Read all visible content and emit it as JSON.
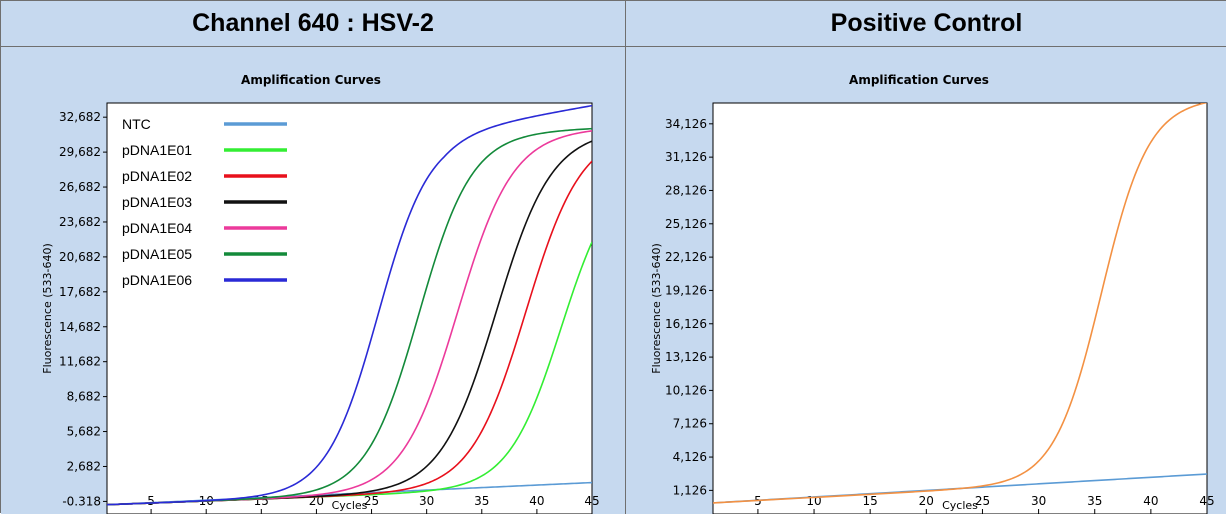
{
  "panels": [
    {
      "header": "Channel 640 : HSV-2",
      "chart_data": {
        "type": "line",
        "title": "Amplification Curves",
        "xlabel": "Cycles",
        "ylabel": "Fluorescence (533-640)",
        "xlim": [
          1,
          45
        ],
        "ylim": [
          -1.4,
          33.9
        ],
        "xticks": [
          5,
          10,
          15,
          20,
          25,
          30,
          35,
          40,
          45
        ],
        "yticks": [
          -0.318,
          2.682,
          5.682,
          8.682,
          11.682,
          14.682,
          17.682,
          20.682,
          23.682,
          26.682,
          29.682,
          32.682
        ],
        "ytick_labels": [
          "-0.318",
          "2,682",
          "5,682",
          "8,682",
          "11,682",
          "14,682",
          "17,682",
          "20,682",
          "23,682",
          "26,682",
          "29,682",
          "32,682"
        ],
        "grid": false,
        "legend_position": "top-left",
        "series": [
          {
            "name": "NTC",
            "color": "#5b9bd5",
            "kind": "linear",
            "params": {
              "base": -0.6,
              "end": 1.3
            }
          },
          {
            "name": "pDNA1E01",
            "color": "#33ee33",
            "kind": "sigmoid",
            "params": {
              "base": -0.6,
              "slope": 0.035,
              "top": 27.5,
              "mid": 42.2,
              "k": 0.42
            }
          },
          {
            "name": "pDNA1E02",
            "color": "#e8101c",
            "kind": "sigmoid",
            "params": {
              "base": -0.6,
              "slope": 0.035,
              "top": 30.5,
              "mid": 39.0,
              "k": 0.4
            }
          },
          {
            "name": "pDNA1E03",
            "color": "#111111",
            "kind": "sigmoid",
            "params": {
              "base": -0.6,
              "slope": 0.035,
              "top": 30.6,
              "mid": 36.3,
              "k": 0.4
            }
          },
          {
            "name": "pDNA1E04",
            "color": "#ec3a9b",
            "kind": "sigmoid",
            "params": {
              "base": -0.6,
              "slope": 0.035,
              "top": 30.8,
              "mid": 32.8,
              "k": 0.4
            }
          },
          {
            "name": "pDNA1E05",
            "color": "#138a3a",
            "kind": "sigmoid",
            "params": {
              "base": -0.6,
              "slope": 0.035,
              "top": 30.8,
              "mid": 29.3,
              "k": 0.42
            }
          },
          {
            "name": "pDNA1E06",
            "color": "#2a2ad6",
            "kind": "sigmoid",
            "params": {
              "base": -0.6,
              "slope": 0.035,
              "top": 31.0,
              "mid": 25.6,
              "k": 0.43,
              "drift": 0.13
            }
          }
        ]
      }
    },
    {
      "header": "Positive Control",
      "chart_data": {
        "type": "line",
        "title": "Amplification Curves",
        "xlabel": "Cycles",
        "ylabel": "Fluorescence (533-640)",
        "xlim": [
          1,
          45
        ],
        "ylim": [
          -1.0,
          36.0
        ],
        "xticks": [
          5,
          10,
          15,
          20,
          25,
          30,
          35,
          40,
          45
        ],
        "yticks": [
          1.126,
          4.126,
          7.126,
          10.126,
          13.126,
          16.126,
          19.126,
          22.126,
          25.126,
          28.126,
          31.126,
          34.126
        ],
        "ytick_labels": [
          "1,126",
          "4,126",
          "7,126",
          "10,126",
          "13,126",
          "16,126",
          "19,126",
          "22,126",
          "25,126",
          "28,126",
          "31,126",
          "34,126"
        ],
        "grid": false,
        "series": [
          {
            "name": "",
            "color": "#5b9bd5",
            "kind": "linear",
            "params": {
              "base": 0.0,
              "end": 2.6
            }
          },
          {
            "name": "",
            "color": "#f39143",
            "kind": "sigmoid",
            "params": {
              "base": 0.0,
              "slope": 0.055,
              "top": 34.0,
              "mid": 35.6,
              "k": 0.48
            }
          }
        ]
      }
    }
  ]
}
